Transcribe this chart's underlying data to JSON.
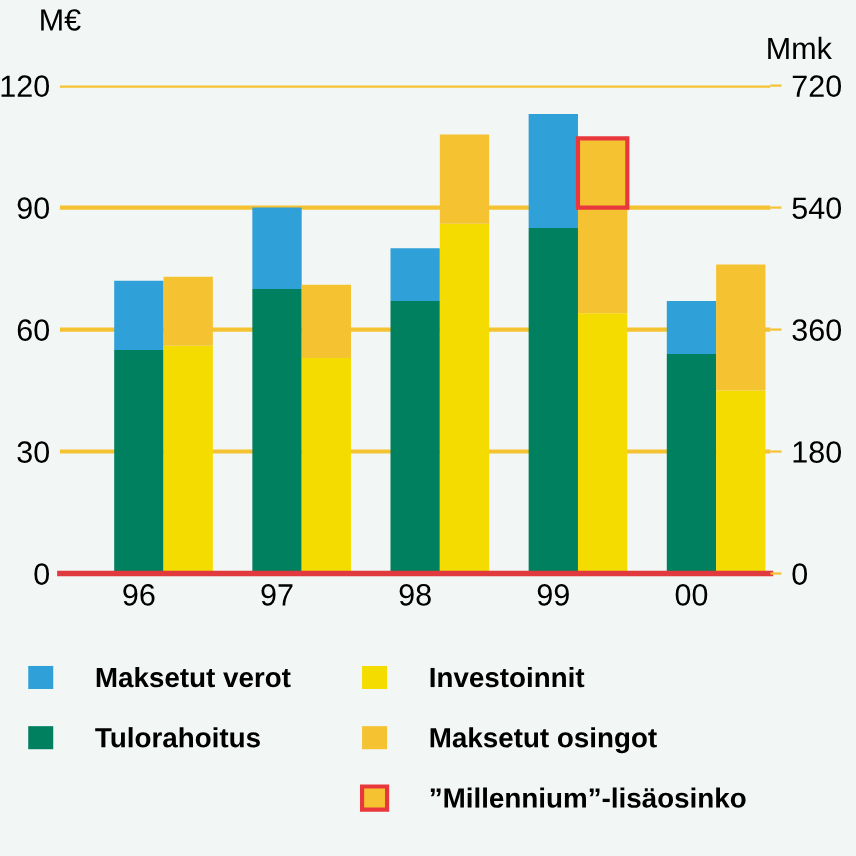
{
  "chart_data": {
    "type": "bar",
    "stacked": true,
    "ylabel": "M€",
    "y2label": "Mmk",
    "categories": [
      "96",
      null,
      "97",
      null,
      "98",
      null,
      "99",
      null,
      "00",
      null
    ],
    "series": [
      {
        "name": "Tulorahoitus",
        "color": "#00805f",
        "values": [
          55,
          null,
          70,
          null,
          67,
          null,
          85,
          null,
          54,
          null
        ]
      },
      {
        "name": "Maksetut verot",
        "color": "#30a0d8",
        "values": [
          17,
          null,
          20,
          null,
          13,
          null,
          28,
          null,
          13,
          null
        ]
      },
      {
        "name": "Investoinnit",
        "color": "#f4dc00",
        "values": [
          null,
          56,
          null,
          53,
          null,
          86,
          null,
          64,
          null,
          45
        ]
      },
      {
        "name": "Maksetut osingot",
        "color": "#f5c232",
        "values": [
          null,
          17,
          null,
          18,
          null,
          22,
          null,
          26,
          null,
          31
        ]
      },
      {
        "name": "”Millennium”-lisäosinko",
        "color": "#f5c232",
        "line_style": "solid",
        "values": [
          null,
          null,
          null,
          null,
          null,
          null,
          null,
          17,
          null,
          null
        ]
      }
    ],
    "ylim": [
      0,
      120
    ],
    "yticks": [
      0,
      30,
      60,
      90,
      120
    ],
    "y2lim": [
      0,
      720
    ],
    "y2ticks": [
      0,
      180,
      360,
      540,
      720
    ],
    "grid": "y",
    "legend": "bottom"
  }
}
